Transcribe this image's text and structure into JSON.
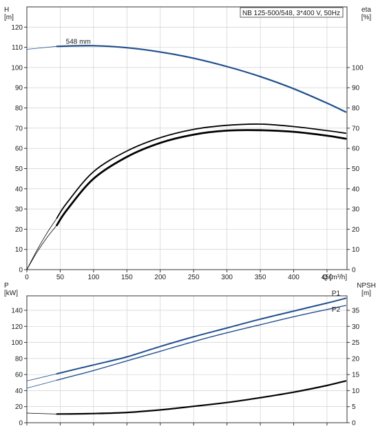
{
  "chart_data": [
    {
      "type": "line",
      "title": "NB 125-500/548, 3*400 V, 50Hz",
      "xlabel": "Q [m³/h]",
      "x_ticks": [
        0,
        50,
        100,
        150,
        200,
        250,
        300,
        350,
        400,
        450
      ],
      "xlim": [
        0,
        480
      ],
      "left_axis": {
        "label_top": "H",
        "label_unit": "[m]",
        "ticks": [
          0,
          10,
          20,
          30,
          40,
          50,
          60,
          70,
          80,
          90,
          100,
          110,
          120
        ],
        "ylim": [
          0,
          130
        ]
      },
      "right_axis": {
        "label_top": "eta",
        "label_unit": "[%]",
        "ticks": [
          0,
          10,
          20,
          30,
          40,
          50,
          60,
          70,
          80,
          90,
          100
        ],
        "ylim": [
          0,
          130
        ]
      },
      "grid": true,
      "annotations": [
        {
          "text": "548 mm",
          "x": 75,
          "y": 111
        }
      ],
      "series": [
        {
          "name": "548 mm",
          "axis": "left",
          "color": "#1f4e8c",
          "width": 2.2,
          "x": [
            45,
            100,
            150,
            200,
            250,
            300,
            350,
            400,
            450,
            478
          ],
          "y": [
            110.5,
            110.8,
            109.8,
            107.7,
            104.6,
            100.5,
            95.5,
            89.5,
            82.4,
            78.0
          ]
        },
        {
          "axis": "left",
          "color": "#1f4e8c",
          "width": 0.8,
          "extension": true,
          "x": [
            0,
            45
          ],
          "y": [
            109.0,
            110.5
          ]
        },
        {
          "axis": "right",
          "color": "#000000",
          "width": 1.8,
          "x": [
            45,
            60,
            100,
            150,
            200,
            250,
            300,
            350,
            400,
            450,
            478
          ],
          "y": [
            25.5,
            33,
            48.5,
            58.7,
            65.3,
            69.4,
            71.4,
            72.0,
            70.8,
            68.8,
            67.5
          ]
        },
        {
          "axis": "right",
          "color": "#000000",
          "width": 2.8,
          "x": [
            45,
            60,
            100,
            150,
            200,
            250,
            300,
            350,
            400,
            450,
            478
          ],
          "y": [
            22.0,
            29.5,
            45,
            55.8,
            62.7,
            66.8,
            68.8,
            69.0,
            68.2,
            66.3,
            64.8
          ]
        },
        {
          "axis": "right",
          "color": "#000000",
          "width": 0.8,
          "extension": true,
          "x": [
            0,
            15,
            30,
            45
          ],
          "y": [
            0,
            9.5,
            18,
            25.5
          ]
        },
        {
          "axis": "right",
          "color": "#000000",
          "width": 0.8,
          "extension": true,
          "x": [
            0,
            15,
            30,
            45
          ],
          "y": [
            0,
            8.5,
            15.8,
            22.0
          ]
        }
      ]
    },
    {
      "type": "line",
      "xlim": [
        0,
        480
      ],
      "left_axis": {
        "label_top": "P",
        "label_unit": "[kW]",
        "ticks": [
          0,
          20,
          40,
          60,
          80,
          100,
          120,
          140
        ],
        "ylim": [
          0,
          158
        ]
      },
      "right_axis": {
        "label_top": "NPSH",
        "label_unit": "[m]",
        "ticks": [
          0,
          5,
          10,
          15,
          20,
          25,
          30,
          35
        ],
        "ylim": [
          0,
          39.5
        ]
      },
      "grid": true,
      "series": [
        {
          "name": "P1",
          "axis": "left",
          "color": "#1f4e8c",
          "width": 2.0,
          "x": [
            45,
            100,
            150,
            200,
            250,
            300,
            350,
            400,
            450,
            478
          ],
          "y": [
            61,
            72,
            82,
            95,
            107,
            118,
            129,
            139,
            149,
            155
          ]
        },
        {
          "name": "P2",
          "axis": "left",
          "color": "#1f4e8c",
          "width": 1.4,
          "x": [
            45,
            100,
            150,
            200,
            250,
            300,
            350,
            400,
            450,
            478
          ],
          "y": [
            53,
            65,
            77,
            89,
            101,
            112,
            122,
            132,
            141,
            146
          ]
        },
        {
          "axis": "left",
          "color": "#1f4e8c",
          "width": 0.8,
          "extension": true,
          "x": [
            0,
            45
          ],
          "y": [
            52,
            61
          ]
        },
        {
          "axis": "left",
          "color": "#1f4e8c",
          "width": 0.8,
          "extension": true,
          "x": [
            0,
            45
          ],
          "y": [
            43,
            53
          ]
        },
        {
          "axis": "right",
          "color": "#000000",
          "width": 2.2,
          "x": [
            45,
            100,
            150,
            200,
            250,
            300,
            350,
            400,
            450,
            478
          ],
          "y": [
            2.7,
            2.85,
            3.2,
            4.0,
            5.1,
            6.3,
            7.8,
            9.5,
            11.6,
            13.0
          ]
        },
        {
          "axis": "right",
          "color": "#000000",
          "width": 0.8,
          "extension": true,
          "x": [
            0,
            45
          ],
          "y": [
            3.0,
            2.7
          ]
        }
      ],
      "labels": [
        {
          "text": "P1",
          "x": 455,
          "y": 155
        },
        {
          "text": "P2",
          "x": 455,
          "y": 141
        }
      ]
    }
  ]
}
